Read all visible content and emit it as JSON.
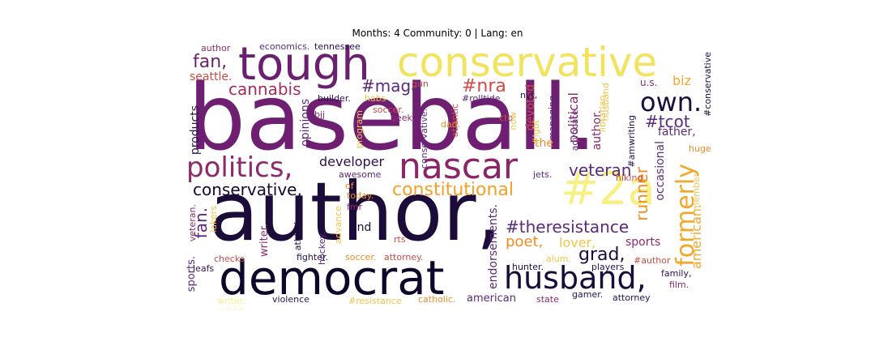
{
  "header": {
    "title": "Months: 4 Community: 0 | Lang: en"
  },
  "cloud": {
    "words": [
      {
        "text": "baseball.",
        "color": "#6e1f72"
      },
      {
        "text": "author,",
        "color": "#1b0c3a"
      },
      {
        "text": "democrat",
        "color": "#0d0829"
      },
      {
        "text": "tough",
        "color": "#6a1f70"
      },
      {
        "text": "conservative",
        "color": "#f2e35f"
      },
      {
        "text": "nascar",
        "color": "#8b2568"
      },
      {
        "text": "#2a",
        "color": "#f6f085"
      },
      {
        "text": "politics,",
        "color": "#8d2a6b"
      },
      {
        "text": "husband,",
        "color": "#1a0c38"
      },
      {
        "text": "formerly",
        "color": "#f2a62a"
      },
      {
        "text": "own.",
        "color": "#1c0e3c"
      },
      {
        "text": "constitutional",
        "color": "#f4a026"
      },
      {
        "text": "#theresistance",
        "color": "#5a2a79"
      },
      {
        "text": "conservative,",
        "color": "#15092f"
      },
      {
        "text": "veteran",
        "color": "#5a2a79"
      },
      {
        "text": "grad,",
        "color": "#1c0e3c"
      },
      {
        "text": "fan,",
        "color": "#6a1f70"
      },
      {
        "text": "fan.",
        "color": "#5a2a79"
      },
      {
        "text": "#nra",
        "color": "#d24a43"
      },
      {
        "text": "#maga",
        "color": "#5a2a79"
      },
      {
        "text": "cannabis",
        "color": "#a12e5b"
      },
      {
        "text": "#tcot",
        "color": "#5a2a79"
      },
      {
        "text": "runner",
        "color": "#f28c22"
      },
      {
        "text": "american.",
        "color": "#f2a62a"
      },
      {
        "text": "poet,",
        "color": "#f28c22"
      },
      {
        "text": "developer",
        "color": "#2a1153"
      },
      {
        "text": "biz",
        "color": "#f2a62a"
      },
      {
        "text": "father,",
        "color": "#5a2a79"
      },
      {
        "text": "sports",
        "color": "#8d2a6b"
      },
      {
        "text": "lover,",
        "color": "#f5c445"
      },
      {
        "text": "seattle.",
        "color": "#d24a43"
      },
      {
        "text": "political",
        "color": "#8d2a6b"
      },
      {
        "text": "author.",
        "color": "#8d2a6b"
      },
      {
        "text": "devoted",
        "color": "#d24a43"
      },
      {
        "text": "occasional",
        "color": "#5a2a79"
      },
      {
        "text": "endorsements.",
        "color": "#5a2a79"
      },
      {
        "text": "american",
        "color": "#5a2a79"
      },
      {
        "text": "products",
        "color": "#2a1153"
      },
      {
        "text": "opinions",
        "color": "#5a2a79"
      },
      {
        "text": "writer.",
        "color": "#8d2a6b"
      },
      {
        "text": "sports.",
        "color": "#5a2a79"
      },
      {
        "text": "u.s.",
        "color": "#8d2a6b"
      },
      {
        "text": "the",
        "color": "#f28c22"
      },
      {
        "text": "and",
        "color": "#1c0e3c"
      },
      {
        "text": "economics.",
        "color": "#5a2a79"
      },
      {
        "text": "tennessee",
        "color": "#2a1153"
      },
      {
        "text": "author",
        "color": "#8d2a6b"
      },
      {
        "text": "awesome",
        "color": "#5a2a79"
      },
      {
        "text": "jets.",
        "color": "#5a2a79"
      },
      {
        "text": "hiking.",
        "color": "#d24a43"
      },
      {
        "text": "huge",
        "color": "#f28c22"
      },
      {
        "text": "family,",
        "color": "#2a1153"
      },
      {
        "text": "film.",
        "color": "#8d2a6b"
      },
      {
        "text": "players",
        "color": "#2a1153"
      },
      {
        "text": "#author",
        "color": "#d24a43"
      },
      {
        "text": "hunter.",
        "color": "#1c0e3c"
      },
      {
        "text": "attorney",
        "color": "#2a1153"
      },
      {
        "text": "gamer.",
        "color": "#2a1153"
      },
      {
        "text": "state",
        "color": "#8d2a6b"
      },
      {
        "text": "catholic.",
        "color": "#f28c22"
      },
      {
        "text": "#resistance",
        "color": "#f5c445"
      },
      {
        "text": "violence",
        "color": "#2a1153"
      },
      {
        "text": "writer.",
        "color": "#f6f085"
      },
      {
        "text": "ucad",
        "color": "#f6f085"
      },
      {
        "text": "leafs",
        "color": "#2a1153"
      },
      {
        "text": "checks",
        "color": "#d24a43"
      },
      {
        "text": "fighter.",
        "color": "#2a1153"
      },
      {
        "text": "soccer.",
        "color": "#f28c22"
      },
      {
        "text": "attorney.",
        "color": "#d24a43"
      },
      {
        "text": "alum.",
        "color": "#f5c445"
      },
      {
        "text": "rts",
        "color": "#d24a43"
      },
      {
        "text": "today.",
        "color": "#f28c22"
      },
      {
        "text": "of",
        "color": "#f28c22"
      },
      {
        "text": "fmr",
        "color": "#8d2a6b"
      },
      {
        "text": "advance",
        "color": "#f5c445"
      },
      {
        "text": "athletic",
        "color": "#1c0e3c"
      },
      {
        "text": "hockey.",
        "color": "#5a2a79"
      },
      {
        "text": "lakers",
        "color": "#f5c445"
      },
      {
        "text": "veteran.",
        "color": "#8d2a6b"
      },
      {
        "text": "builder.",
        "color": "#2a1153"
      },
      {
        "text": "habs",
        "color": "#f5c445"
      },
      {
        "text": "soccer.",
        "color": "#d24a43"
      },
      {
        "text": "bjj",
        "color": "#8d2a6b"
      },
      {
        "text": "program",
        "color": "#f5c445"
      },
      {
        "text": "gun",
        "color": "#d24a43"
      },
      {
        "text": "geek.",
        "color": "#8d2a6b"
      },
      {
        "text": "conservative.",
        "color": "#5a2a79"
      },
      {
        "text": "atlantic",
        "color": "#d24a43"
      },
      {
        "text": "#rolltide",
        "color": "#5a2a79"
      },
      {
        "text": "dad.",
        "color": "#f28c22"
      },
      {
        "text": "cto",
        "color": "#d24a43"
      },
      {
        "text": "nyt,",
        "color": "#2a1153"
      },
      {
        "text": "managing",
        "color": "#5a2a79"
      },
      {
        "text": "advocate.",
        "color": "#5a2a79"
      },
      {
        "text": "librarian.",
        "color": "#f5c445"
      },
      {
        "text": "husband",
        "color": "#f5c445"
      },
      {
        "text": "#amwriting",
        "color": "#2a1153"
      },
      {
        "text": "member",
        "color": "#f5c445"
      },
      {
        "text": "#conservative",
        "color": "#1c0e3c"
      },
      {
        "text": "#lgbt",
        "color": "#f5c445"
      },
      {
        "text": "now",
        "color": "#f5c445"
      }
    ]
  }
}
